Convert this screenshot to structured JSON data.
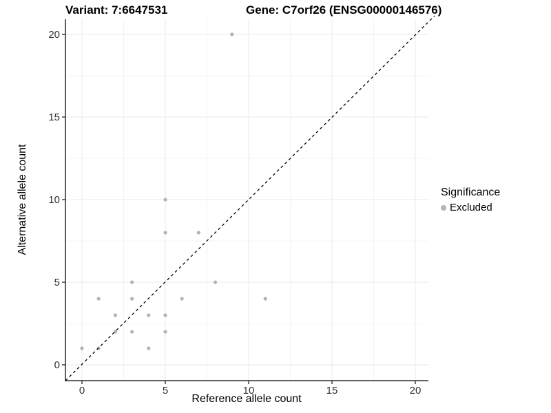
{
  "header": {
    "variant_title": "Variant: 7:6647531",
    "gene_title": "Gene: C7orf26 (ENSG00000146576)"
  },
  "colors": {
    "point": "#b3b3b3",
    "grid_major": "#e9e9e9",
    "grid_minor": "#f4f4f4",
    "axis_line": "#4d4d4d",
    "tick_mark": "#333333",
    "tick_label": "#303030",
    "diagonal_line": "#000000",
    "title_text": "#000000"
  },
  "chart_data": {
    "type": "scatter",
    "title_left": "Variant: 7:6647531",
    "title_right": "Gene: C7orf26 (ENSG00000146576)",
    "xlabel": "Reference allele count",
    "ylabel": "Alternative allele count",
    "xlim": [
      -1,
      21
    ],
    "ylim": [
      -1,
      21
    ],
    "x_ticks": [
      0,
      5,
      10,
      15,
      20
    ],
    "y_ticks": [
      0,
      5,
      10,
      15,
      20
    ],
    "minor_ticks": [
      2.5,
      7.5,
      12.5,
      17.5
    ],
    "grid": true,
    "legend_position": "right",
    "legend_title": "Significance",
    "reference_line": {
      "type": "identity",
      "slope": 1,
      "intercept": 0,
      "style": "dashed"
    },
    "series": [
      {
        "name": "Excluded",
        "color": "#b3b3b3",
        "points": [
          [
            0,
            1
          ],
          [
            1,
            1
          ],
          [
            1,
            4
          ],
          [
            2,
            2
          ],
          [
            2,
            3
          ],
          [
            3,
            2
          ],
          [
            3,
            4
          ],
          [
            3,
            5
          ],
          [
            4,
            1
          ],
          [
            4,
            3
          ],
          [
            5,
            2
          ],
          [
            5,
            3
          ],
          [
            5,
            8
          ],
          [
            5,
            10
          ],
          [
            6,
            4
          ],
          [
            7,
            8
          ],
          [
            8,
            5
          ],
          [
            9,
            20
          ],
          [
            11,
            4
          ]
        ]
      }
    ]
  }
}
